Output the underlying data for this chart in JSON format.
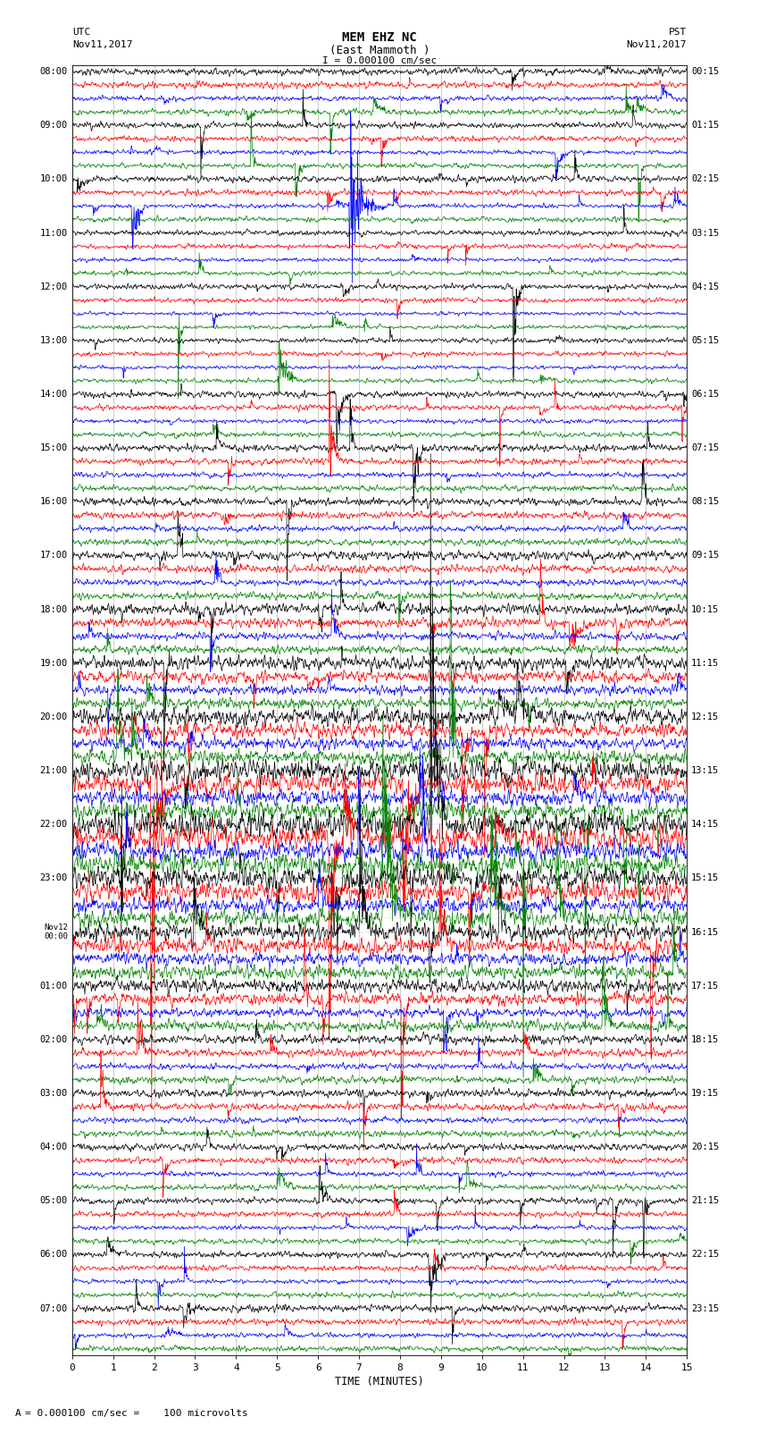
{
  "title_line1": "MEM EHZ NC",
  "title_line2": "(East Mammoth )",
  "title_line3": "I = 0.000100 cm/sec",
  "label_utc": "UTC",
  "label_date_left": "Nov11,2017",
  "label_pst": "PST",
  "label_date_right": "Nov11,2017",
  "xlabel": "TIME (MINUTES)",
  "footnote": "= 0.000100 cm/sec =    100 microvolts",
  "utc_labels": [
    "08:00",
    "09:00",
    "10:00",
    "11:00",
    "12:00",
    "13:00",
    "14:00",
    "15:00",
    "16:00",
    "17:00",
    "18:00",
    "19:00",
    "20:00",
    "21:00",
    "22:00",
    "23:00",
    "Nov12\n00:00",
    "01:00",
    "02:00",
    "03:00",
    "04:00",
    "05:00",
    "06:00",
    "07:00"
  ],
  "pst_labels": [
    "00:15",
    "01:15",
    "02:15",
    "03:15",
    "04:15",
    "05:15",
    "06:15",
    "07:15",
    "08:15",
    "09:15",
    "10:15",
    "11:15",
    "12:15",
    "13:15",
    "14:15",
    "15:15",
    "16:15",
    "17:15",
    "18:15",
    "19:15",
    "20:15",
    "21:15",
    "22:15",
    "23:15"
  ],
  "n_hours": 24,
  "traces_per_hour": 4,
  "minutes_per_trace": 15,
  "colors": [
    "black",
    "red",
    "blue",
    "green"
  ],
  "grid_color": "#888888",
  "bg_color": "#ffffff",
  "xticks": [
    0,
    1,
    2,
    3,
    4,
    5,
    6,
    7,
    8,
    9,
    10,
    11,
    12,
    13,
    14,
    15
  ],
  "xticklabels": [
    "0",
    "1",
    "2",
    "3",
    "4",
    "5",
    "6",
    "7",
    "8",
    "9",
    "10",
    "11",
    "12",
    "13",
    "14",
    "15"
  ]
}
